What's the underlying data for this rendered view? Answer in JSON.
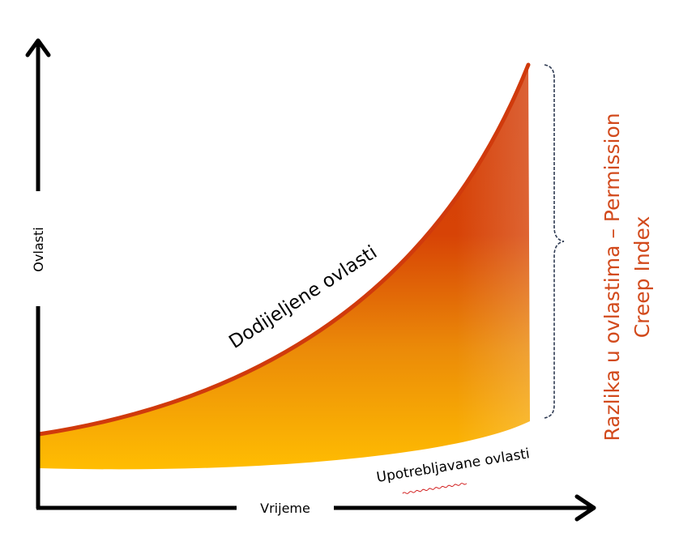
{
  "axes": {
    "y_label": "Ovlasti",
    "x_label": "Vrijeme"
  },
  "curves": {
    "granted_label": "Dodijeljene ovlasti",
    "used_label": "Upotrebljavane ovlasti"
  },
  "gap_label": {
    "line1": "Razlika u ovlastima – Permission",
    "line2": "Creep Index"
  },
  "colors": {
    "gradient_top": "#d33f0c",
    "gradient_mid": "#e2640a",
    "gradient_bottom": "#ffbd02",
    "granted_line": "#d03a0c",
    "gap_text": "#d24a1c",
    "brace": "#2e3a52",
    "axis": "#000000",
    "spellcheck_underline": "#d22020"
  }
}
